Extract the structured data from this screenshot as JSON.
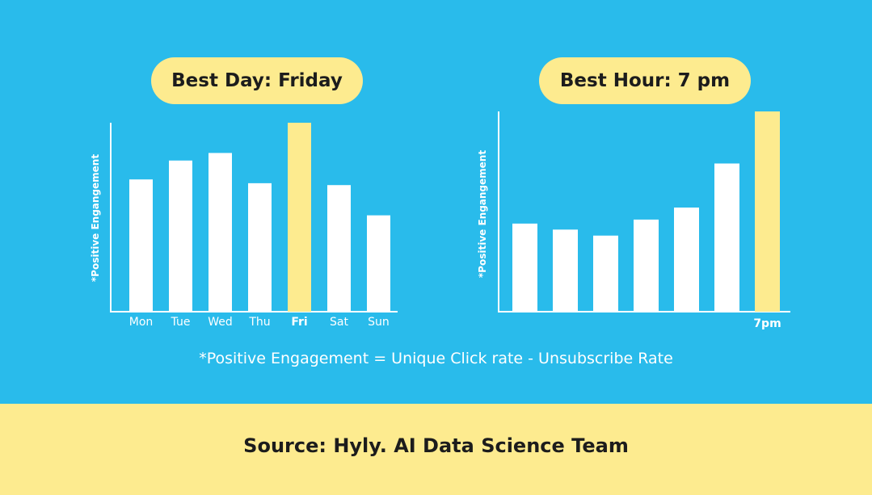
{
  "colors": {
    "background": "#29bbeb",
    "accent": "#fdeb8f",
    "bar": "#ffffff",
    "highlight": "#fdeb8f",
    "text_dark": "#1c1c1c"
  },
  "footnote": "*Positive Engagement = Unique Click rate - Unsubscribe Rate",
  "source": "Source: Hyly. AI Data Science Team",
  "chart_data": [
    {
      "type": "bar",
      "title": "Best Day: Friday",
      "ylabel": "*Positive Engangement",
      "xlabel": "",
      "categories": [
        "Mon",
        "Tue",
        "Wed",
        "Thu",
        "Fri",
        "Sat",
        "Sun"
      ],
      "values": [
        70,
        80,
        84,
        68,
        100,
        67,
        51
      ],
      "highlight_index": 4,
      "ylim": [
        0,
        100
      ]
    },
    {
      "type": "bar",
      "title": "Best Hour: 7 pm",
      "ylabel": "*Positive Engangement",
      "xlabel": "",
      "categories": [
        "",
        "",
        "",
        "",
        "",
        "",
        "7pm"
      ],
      "values": [
        44,
        41,
        38,
        46,
        52,
        74,
        100
      ],
      "highlight_index": 6,
      "ylim": [
        0,
        100
      ]
    }
  ]
}
